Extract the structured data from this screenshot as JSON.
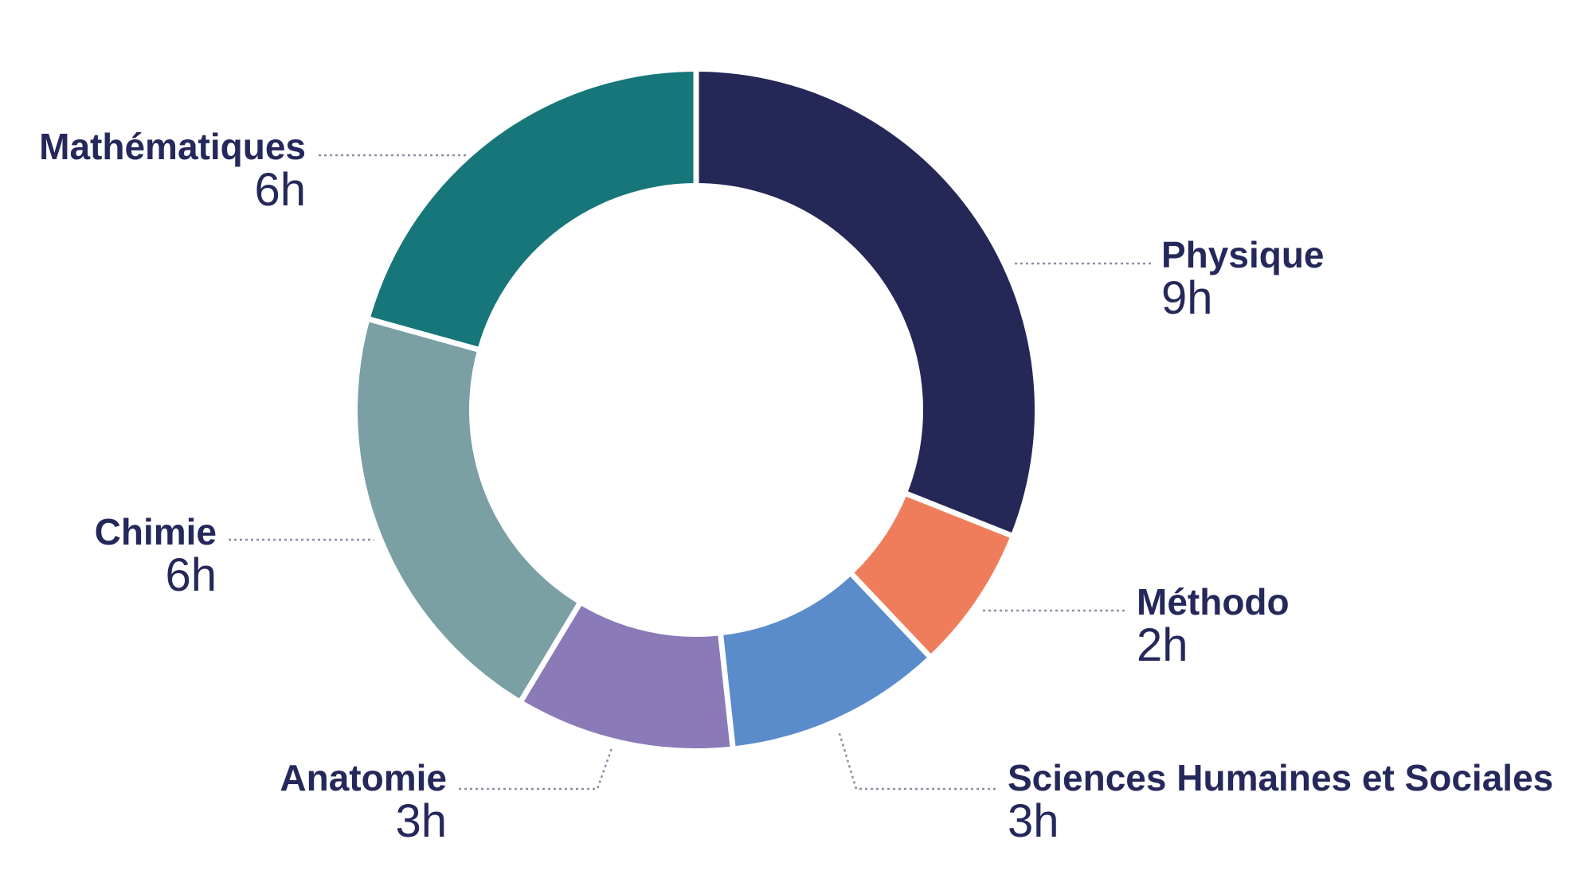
{
  "chart_data": {
    "type": "pie",
    "style": "donut",
    "unit_suffix": "h",
    "slices": [
      {
        "label": "Physique",
        "value": 9,
        "value_text": "9h",
        "color": "#252757"
      },
      {
        "label": "Méthodo",
        "value": 2,
        "value_text": "2h",
        "color": "#ef7d5b"
      },
      {
        "label": "Sciences Humaines et Sociales",
        "value": 3,
        "value_text": "3h",
        "color": "#5a8ccb"
      },
      {
        "label": "Anatomie",
        "value": 3,
        "value_text": "3h",
        "color": "#8a7bb8"
      },
      {
        "label": "Chimie",
        "value": 6,
        "value_text": "6h",
        "color": "#7aa0a4"
      },
      {
        "label": "Mathématiques",
        "value": 6,
        "value_text": "6h",
        "color": "#16767a"
      }
    ],
    "label_color": "#25285a"
  }
}
